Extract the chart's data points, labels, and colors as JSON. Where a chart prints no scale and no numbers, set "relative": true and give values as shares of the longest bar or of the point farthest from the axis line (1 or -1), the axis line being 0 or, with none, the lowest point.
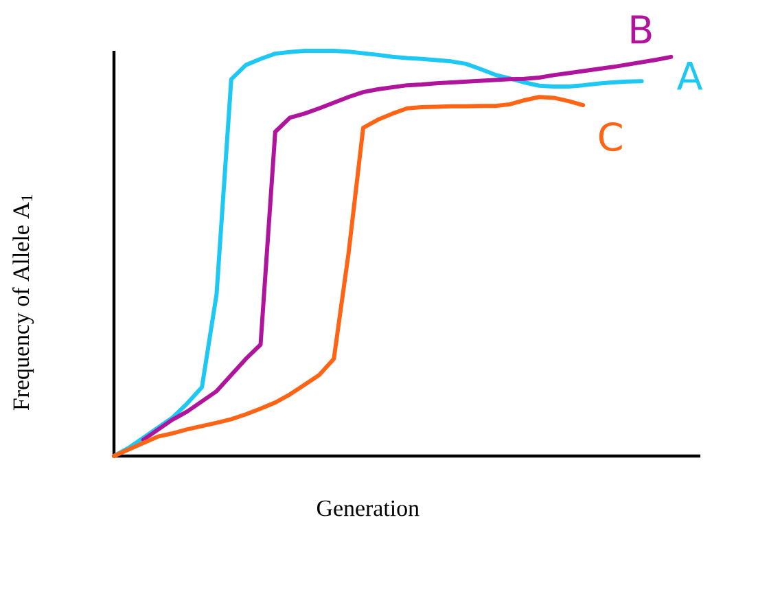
{
  "chart_data": {
    "type": "line",
    "relative": true,
    "xlabel": "Generation",
    "ylabel": "Frequency of Allele A$_{1}$",
    "line_style": "solid",
    "categories": [
      null,
      null,
      null,
      null,
      null,
      null,
      null,
      null,
      null,
      null,
      null,
      null,
      null,
      null,
      null,
      null,
      null,
      null,
      null,
      null,
      null,
      null,
      null,
      null,
      null,
      null,
      null,
      null,
      null,
      null,
      null,
      null,
      null,
      null,
      null,
      null,
      null,
      null,
      null,
      null,
      null
    ],
    "series": [
      {
        "name": "A",
        "color": "#1ec8f5",
        "values": [
          0,
          0.02,
          0.045,
          0.07,
          0.095,
          0.13,
          0.17,
          0.4,
          0.93,
          0.965,
          0.98,
          0.993,
          0.997,
          1,
          1,
          1,
          0.998,
          0.994,
          0.99,
          0.985,
          0.982,
          0.98,
          0.977,
          0.974,
          0.968,
          0.955,
          0.941,
          0.932,
          0.922,
          0.914,
          0.912,
          0.912,
          0.915,
          0.919,
          0.922,
          0.924,
          0.925,
          null,
          null,
          null,
          null
        ]
      },
      {
        "name": "B",
        "color": "#b0149c",
        "values": [
          null,
          null,
          0.04,
          0.065,
          0.09,
          0.11,
          0.135,
          0.16,
          0.2,
          0.24,
          0.275,
          0.8,
          0.835,
          0.845,
          0.858,
          0.872,
          0.886,
          0.898,
          0.905,
          0.91,
          0.915,
          0.917,
          0.92,
          0.922,
          0.924,
          0.926,
          0.928,
          0.93,
          0.931,
          0.934,
          0.94,
          0.945,
          0.95,
          0.955,
          0.96,
          0.966,
          0.972,
          0.978,
          0.985,
          null,
          null
        ]
      },
      {
        "name": "C",
        "color": "#ff6414",
        "values": [
          0,
          0.016,
          0.032,
          0.048,
          0.056,
          0.066,
          0.074,
          0.082,
          0.091,
          0.103,
          0.117,
          0.132,
          0.152,
          0.176,
          0.2,
          0.24,
          0.5,
          0.81,
          0.83,
          0.845,
          0.858,
          0.861,
          0.862,
          0.863,
          0.863,
          0.864,
          0.864,
          0.868,
          0.878,
          0.886,
          0.884,
          0.876,
          0.866,
          null,
          null,
          null,
          null,
          null,
          null,
          null,
          null
        ]
      }
    ]
  }
}
